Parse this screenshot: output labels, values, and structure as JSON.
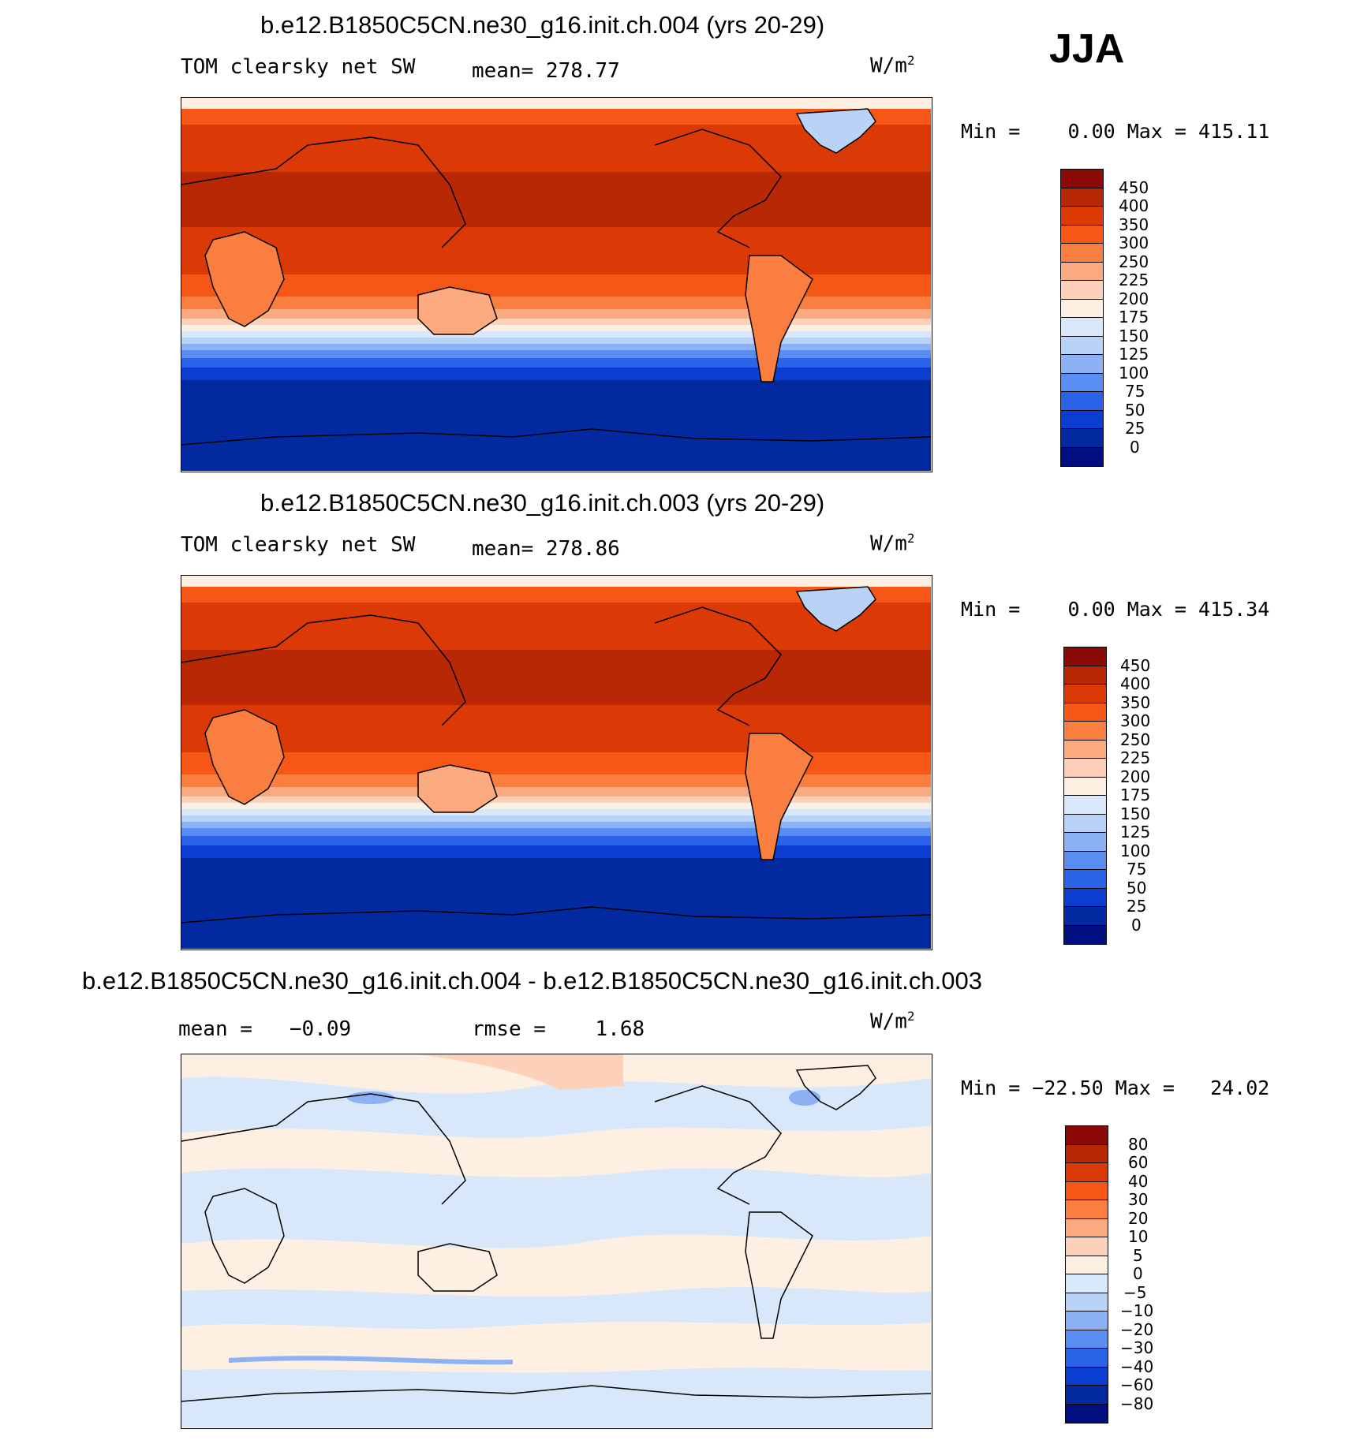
{
  "season": "JJA",
  "units": "W/m",
  "units_sup": "2",
  "panels": [
    {
      "title": "b.e12.B1850C5CN.ne30_g16.init.ch.004 (yrs 20-29)",
      "left_text": "TOM clearsky net SW",
      "center_text": "mean= 278.77",
      "minmax": "Min =    0.00 Max = 415.11",
      "levels": [
        "450",
        "400",
        "350",
        "300",
        "250",
        "225",
        "200",
        "175",
        "150",
        "125",
        "100",
        "75",
        "50",
        "25",
        "0"
      ],
      "colors": [
        "#8b0a06",
        "#b82804",
        "#db3a06",
        "#f65716",
        "#fa7e40",
        "#fbaa80",
        "#fdd1b9",
        "#fdefe2",
        "#d8e8fa",
        "#b8d3f5",
        "#8cb2f3",
        "#5a8df2",
        "#2b63e8",
        "#0a3dd0",
        "#02299f",
        "#000e80"
      ]
    },
    {
      "title": "b.e12.B1850C5CN.ne30_g16.init.ch.003 (yrs 20-29)",
      "left_text": "TOM clearsky net SW",
      "center_text": "mean= 278.86",
      "minmax": "Min =    0.00 Max = 415.34",
      "levels": [
        "450",
        "400",
        "350",
        "300",
        "250",
        "225",
        "200",
        "175",
        "150",
        "125",
        "100",
        "75",
        "50",
        "25",
        "0"
      ],
      "colors": [
        "#8b0a06",
        "#b82804",
        "#db3a06",
        "#f65716",
        "#fa7e40",
        "#fbaa80",
        "#fdd1b9",
        "#fdefe2",
        "#d8e8fa",
        "#b8d3f5",
        "#8cb2f3",
        "#5a8df2",
        "#2b63e8",
        "#0a3dd0",
        "#02299f",
        "#000e80"
      ]
    },
    {
      "title": "b.e12.B1850C5CN.ne30_g16.init.ch.004 - b.e12.B1850C5CN.ne30_g16.init.ch.003",
      "left_text": "mean =   −0.09",
      "center_text": "rmse =    1.68",
      "minmax": "Min = −22.50 Max =   24.02",
      "levels": [
        "80",
        "60",
        "40",
        "30",
        "20",
        "10",
        "5",
        "0",
        "−5",
        "−10",
        "−20",
        "−30",
        "−40",
        "−60",
        "−80"
      ],
      "colors": [
        "#8b0a06",
        "#b82804",
        "#db3a06",
        "#f65716",
        "#fa7e40",
        "#fbaa80",
        "#fdd1b9",
        "#fdefe2",
        "#d8e8fa",
        "#b8d3f5",
        "#8cb2f3",
        "#5a8df2",
        "#2b63e8",
        "#0a3dd0",
        "#02299f",
        "#000e80"
      ]
    }
  ]
}
